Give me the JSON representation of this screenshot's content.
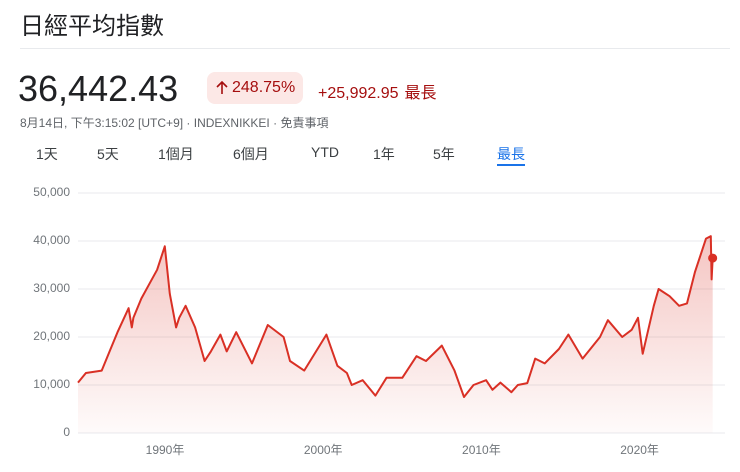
{
  "header": {
    "title": "日經平均指數",
    "price": "36,442.43",
    "change_percent": "248.75%",
    "change": "+25,992.95",
    "range": "最長",
    "timestamp": "8月14日, 下午3:15:02 [UTC+9]",
    "symbol": "INDEXNIKKEI",
    "disclaimer": "免責事項"
  },
  "tabs": [
    "1天",
    "5天",
    "1個月",
    "6個月",
    "YTD",
    "1年",
    "5年",
    "最長"
  ],
  "chart_data": {
    "type": "line",
    "x": [
      1984.5,
      1985,
      1986,
      1986.5,
      1987,
      1987.7,
      1987.9,
      1988,
      1988.5,
      1989,
      1989.5,
      1989.99,
      1990.3,
      1990.7,
      1990.9,
      1991.3,
      1991.9,
      1992.5,
      1992.9,
      1993.5,
      1993.9,
      1994.5,
      1995.5,
      1996.5,
      1997.5,
      1997.9,
      1998.8,
      2000.2,
      2000.9,
      2001.5,
      2001.8,
      2002.5,
      2003.3,
      2004,
      2005,
      2005.9,
      2006.5,
      2007.5,
      2008.3,
      2008.9,
      2009.5,
      2010.3,
      2010.7,
      2011.2,
      2011.9,
      2012.3,
      2012.9,
      2013.4,
      2014,
      2014.9,
      2015.5,
      2016.4,
      2017.5,
      2018,
      2018.9,
      2019.5,
      2019.9,
      2020.2,
      2020.9,
      2021.2,
      2021.9,
      2022.5,
      2023,
      2023.5,
      2024.2,
      2024.5,
      2024.55,
      2024.62
    ],
    "series": [
      {
        "name": "日經平均指數",
        "color": "#d93025",
        "values": [
          10500,
          12500,
          13000,
          17000,
          21000,
          26000,
          22000,
          24000,
          28000,
          31000,
          34000,
          38900,
          29000,
          22000,
          24000,
          26500,
          22000,
          15000,
          17000,
          20500,
          17000,
          21000,
          14500,
          22500,
          20000,
          15000,
          13000,
          20500,
          14000,
          12500,
          10000,
          11000,
          7800,
          11500,
          11500,
          16000,
          15000,
          18200,
          13000,
          7500,
          10000,
          11000,
          9000,
          10500,
          8500,
          10000,
          10400,
          15500,
          14500,
          17500,
          20500,
          15500,
          20000,
          23500,
          20000,
          21500,
          24000,
          16500,
          26500,
          30000,
          28500,
          26500,
          27000,
          33500,
          40500,
          41000,
          32000,
          36442.43
        ]
      }
    ],
    "xlim": [
      1984.5,
      2025.4
    ],
    "xticks": [
      {
        "value": 1990,
        "label": "1990年"
      },
      {
        "value": 2000,
        "label": "2000年"
      },
      {
        "value": 2010,
        "label": "2010年"
      },
      {
        "value": 2020,
        "label": "2020年"
      }
    ],
    "ylim": [
      0,
      50000
    ],
    "yticks": [
      0,
      {
        "value": 10000,
        "label": "10,000"
      },
      {
        "value": 20000,
        "label": "20,000"
      },
      {
        "value": 30000,
        "label": "30,000"
      },
      {
        "value": 40000,
        "label": "40,000"
      },
      {
        "value": 50000,
        "label": "50,000"
      }
    ],
    "grid": true
  }
}
